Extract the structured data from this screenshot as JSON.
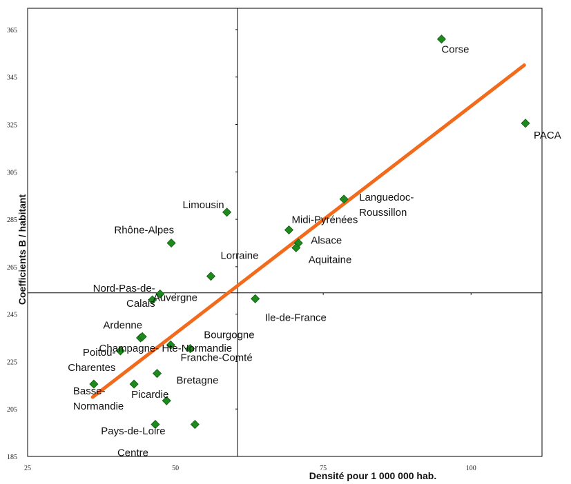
{
  "chart_data": {
    "type": "scatter",
    "title": "",
    "xlabel": "Densité pour 1 000 000 hab.",
    "ylabel": "Coefficients B / habitant",
    "xlim": [
      25,
      112
    ],
    "ylim": [
      185,
      374
    ],
    "x_ticks": [
      25,
      50,
      75,
      100
    ],
    "x_tick_labels": [
      "25",
      "50",
      "75",
      "100"
    ],
    "y_ticks": [
      185,
      205,
      225,
      245,
      265,
      285,
      305,
      325,
      345,
      365
    ],
    "y_tick_labels": [
      "185",
      "205",
      "225",
      "245",
      "265",
      "285",
      "305",
      "325",
      "345",
      "365"
    ],
    "reference_lines": {
      "x": 60.5,
      "y": 254
    },
    "marker_color": "#1e8a1e",
    "trend_color": "#f26b1d",
    "trendline": {
      "x": [
        36,
        109
      ],
      "y": [
        210,
        350
      ]
    },
    "points": [
      {
        "label": [
          "Corse"
        ],
        "x": 95.0,
        "y": 361.0
      },
      {
        "label": [
          "PACA"
        ],
        "x": 109.2,
        "y": 325.5
      },
      {
        "label": [
          "Languedoc-",
          "Roussillon"
        ],
        "x": 78.5,
        "y": 293.5
      },
      {
        "label": [
          "Midi-Pyrénées"
        ],
        "x": 69.2,
        "y": 280.5
      },
      {
        "label": [
          "Alsace"
        ],
        "x": 70.8,
        "y": 275.0
      },
      {
        "label": [
          "Aquitaine"
        ],
        "x": 70.4,
        "y": 273.0
      },
      {
        "label": [
          "Limousin"
        ],
        "x": 58.7,
        "y": 288.0
      },
      {
        "label": [
          "Rhône-Alpes"
        ],
        "x": 49.3,
        "y": 275.0
      },
      {
        "label": [
          "Lorraine"
        ],
        "x": 56.0,
        "y": 261.0
      },
      {
        "label": [
          "Auvergne"
        ],
        "x": 47.4,
        "y": 253.5
      },
      {
        "label": [
          "Nord-Pas-de-",
          "Calais"
        ],
        "x": 46.1,
        "y": 251.0
      },
      {
        "label": [
          "Ile-de-France"
        ],
        "x": 63.5,
        "y": 251.5
      },
      {
        "label": [
          "Champagne- Hte-Normandie"
        ],
        "x": 44.1,
        "y": 235.0
      },
      {
        "label": [
          "Ardenne"
        ],
        "x": 44.4,
        "y": 235.5
      },
      {
        "label": [
          "Bourgogne"
        ],
        "x": 49.2,
        "y": 232.0
      },
      {
        "label": [
          "Franche-Comté"
        ],
        "x": 52.5,
        "y": 230.5
      },
      {
        "label": [
          "Poitou-",
          "Charentes"
        ],
        "x": 40.7,
        "y": 229.5
      },
      {
        "label": [
          "Bretagne"
        ],
        "x": 46.9,
        "y": 220.0
      },
      {
        "label": [
          "Basse-",
          "Normandie"
        ],
        "x": 36.2,
        "y": 215.5
      },
      {
        "label": [
          "Picardie"
        ],
        "x": 43.0,
        "y": 215.5
      },
      {
        "label": [
          "Pays-de-Loire"
        ],
        "x": 48.5,
        "y": 208.5
      },
      {
        "label": [
          "Centre"
        ],
        "x": 46.6,
        "y": 198.5
      },
      {
        "label": [
          "Centre"
        ],
        "x": 53.3,
        "y": 198.5
      }
    ]
  }
}
